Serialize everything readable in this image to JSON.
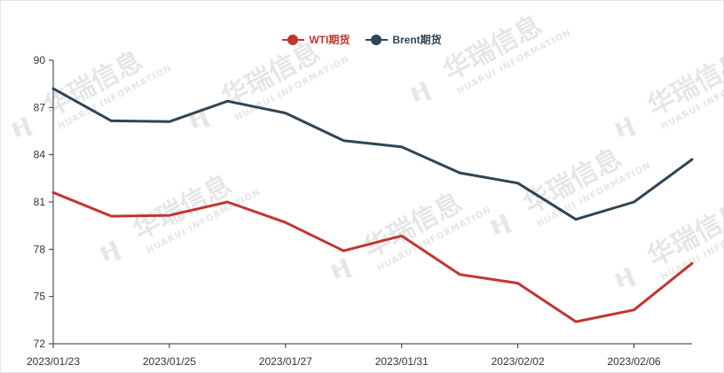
{
  "chart_data": {
    "type": "line",
    "title": "",
    "xlabel": "",
    "ylabel": "",
    "x": [
      "2023/01/23",
      "2023/01/24",
      "2023/01/25",
      "2023/01/26",
      "2023/01/27",
      "2023/01/30",
      "2023/01/31",
      "2023/02/01",
      "2023/02/02",
      "2023/02/03",
      "2023/02/06",
      "2023/02/07"
    ],
    "x_tick_labels": [
      "2023/01/23",
      "2023/01/25",
      "2023/01/27",
      "2023/01/31",
      "2023/02/02",
      "2023/02/06"
    ],
    "y_ticks": [
      72,
      75,
      78,
      81,
      84,
      87,
      90
    ],
    "ylim": [
      72,
      90
    ],
    "grid": false,
    "legend_position": "top-center",
    "series": [
      {
        "name": "WTI期货",
        "color": "#c23531",
        "values": [
          81.6,
          80.1,
          80.15,
          81.0,
          79.7,
          77.9,
          78.85,
          76.4,
          75.85,
          73.4,
          74.15,
          77.1
        ]
      },
      {
        "name": "Brent期货",
        "color": "#2f4554",
        "values": [
          88.2,
          86.15,
          86.1,
          87.4,
          86.65,
          84.9,
          84.5,
          82.85,
          82.2,
          79.9,
          81.0,
          83.7
        ]
      }
    ]
  },
  "watermark": {
    "brand": "华瑞信息",
    "subtitle": "HUARUI INFORMATION",
    "icon": "huarui-logo-icon"
  }
}
